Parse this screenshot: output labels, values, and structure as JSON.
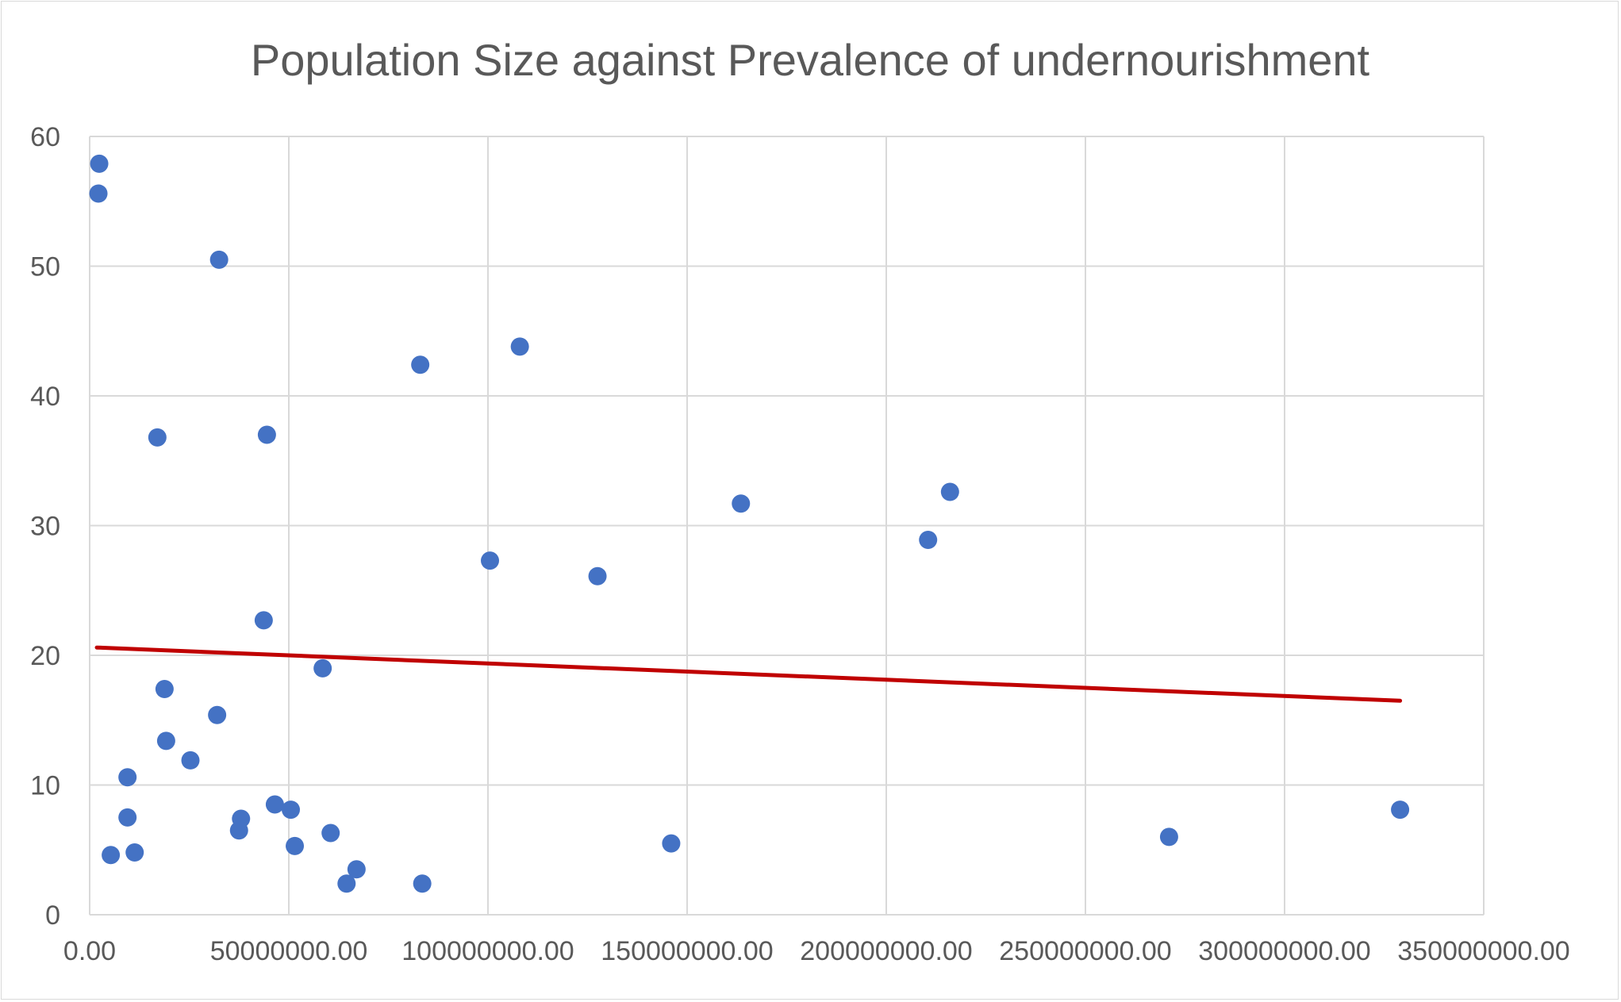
{
  "chart_data": {
    "type": "scatter",
    "title": "Population Size against Prevalence of undernourishment",
    "xlabel": "",
    "ylabel": "",
    "xlim": [
      0,
      350000000
    ],
    "ylim": [
      0,
      60
    ],
    "x_ticks": [
      0,
      50000000,
      100000000,
      150000000,
      200000000,
      250000000,
      300000000,
      350000000
    ],
    "x_tick_labels": [
      "0.00",
      "50000000.00",
      "100000000.00",
      "150000000.00",
      "200000000.00",
      "250000000.00",
      "300000000.00",
      "350000000.00"
    ],
    "y_ticks": [
      0,
      10,
      20,
      30,
      40,
      50,
      60
    ],
    "y_tick_labels": [
      "0",
      "10",
      "20",
      "30",
      "40",
      "50",
      "60"
    ],
    "grid": true,
    "legend": "none",
    "marker_color": "#4472C4",
    "trendline_color": "#C00000",
    "series": [
      {
        "points": [
          [
            2400000,
            57.9
          ],
          [
            2200000,
            55.6
          ],
          [
            32500000,
            50.5
          ],
          [
            108000000,
            43.8
          ],
          [
            83000000,
            42.4
          ],
          [
            17000000,
            36.8
          ],
          [
            44500000,
            37.0
          ],
          [
            216000000,
            32.6
          ],
          [
            163500000,
            31.7
          ],
          [
            210500000,
            28.9
          ],
          [
            100500000,
            27.3
          ],
          [
            127500000,
            26.1
          ],
          [
            43700000,
            22.7
          ],
          [
            58500000,
            19.0
          ],
          [
            18800000,
            17.4
          ],
          [
            32000000,
            15.4
          ],
          [
            19200000,
            13.4
          ],
          [
            25300000,
            11.9
          ],
          [
            9500000,
            10.6
          ],
          [
            9500000,
            7.5
          ],
          [
            38000000,
            7.4
          ],
          [
            37500000,
            6.5
          ],
          [
            46500000,
            8.5
          ],
          [
            50500000,
            8.1
          ],
          [
            51500000,
            5.3
          ],
          [
            60500000,
            6.3
          ],
          [
            5300000,
            4.6
          ],
          [
            11300000,
            4.8
          ],
          [
            67000000,
            3.5
          ],
          [
            64500000,
            2.4
          ],
          [
            83500000,
            2.4
          ],
          [
            146000000,
            5.5
          ],
          [
            271000000,
            6.0
          ],
          [
            329000000,
            8.1
          ]
        ]
      }
    ],
    "trendline": {
      "x": [
        1800000,
        329000000
      ],
      "y": [
        20.6,
        16.5
      ]
    }
  }
}
